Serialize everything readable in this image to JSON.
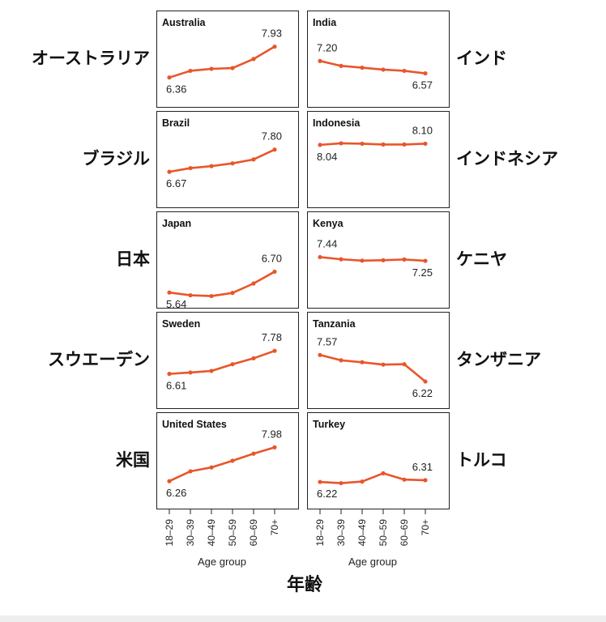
{
  "chart_data": {
    "type": "line",
    "categories": [
      "18–29",
      "30–39",
      "40–49",
      "50–59",
      "60–69",
      "70+"
    ],
    "xlabel": "Age group",
    "xlabel_ja": "年齢",
    "line_color": "#e8562a",
    "panels": [
      {
        "name": "Australia",
        "name_ja": "オーストラリア",
        "values": [
          6.36,
          6.7,
          6.8,
          6.84,
          7.3,
          7.93
        ],
        "start_label": "6.36",
        "end_label": "7.93"
      },
      {
        "name": "India",
        "name_ja": "インド",
        "values": [
          7.2,
          6.95,
          6.86,
          6.76,
          6.7,
          6.57
        ],
        "start_label": "7.20",
        "end_label": "6.57"
      },
      {
        "name": "Brazil",
        "name_ja": "ブラジル",
        "values": [
          6.67,
          6.86,
          6.96,
          7.1,
          7.3,
          7.8
        ],
        "start_label": "6.67",
        "end_label": "7.80"
      },
      {
        "name": "Indonesia",
        "name_ja": "インドネシア",
        "values": [
          8.04,
          8.12,
          8.1,
          8.06,
          8.06,
          8.1
        ],
        "start_label": "8.04",
        "end_label": "8.10"
      },
      {
        "name": "Japan",
        "name_ja": "日本",
        "values": [
          5.64,
          5.5,
          5.46,
          5.62,
          6.1,
          6.7
        ],
        "start_label": "5.64",
        "end_label": "6.70"
      },
      {
        "name": "Kenya",
        "name_ja": "ケニヤ",
        "values": [
          7.44,
          7.33,
          7.26,
          7.28,
          7.32,
          7.25
        ],
        "start_label": "7.44",
        "end_label": "7.25"
      },
      {
        "name": "Sweden",
        "name_ja": "スウエーデン",
        "values": [
          6.61,
          6.68,
          6.76,
          7.1,
          7.4,
          7.78
        ],
        "start_label": "6.61",
        "end_label": "7.78"
      },
      {
        "name": "Tanzania",
        "name_ja": "タンザニア",
        "values": [
          7.57,
          7.3,
          7.2,
          7.08,
          7.1,
          6.22
        ],
        "start_label": "7.57",
        "end_label": "6.22"
      },
      {
        "name": "United States",
        "name_ja": "米国",
        "values": [
          6.26,
          6.76,
          6.96,
          7.3,
          7.66,
          7.98
        ],
        "start_label": "6.26",
        "end_label": "7.98"
      },
      {
        "name": "Turkey",
        "name_ja": "トルコ",
        "values": [
          6.22,
          6.16,
          6.24,
          6.66,
          6.34,
          6.31
        ],
        "start_label": "6.22",
        "end_label": "6.31"
      }
    ]
  }
}
